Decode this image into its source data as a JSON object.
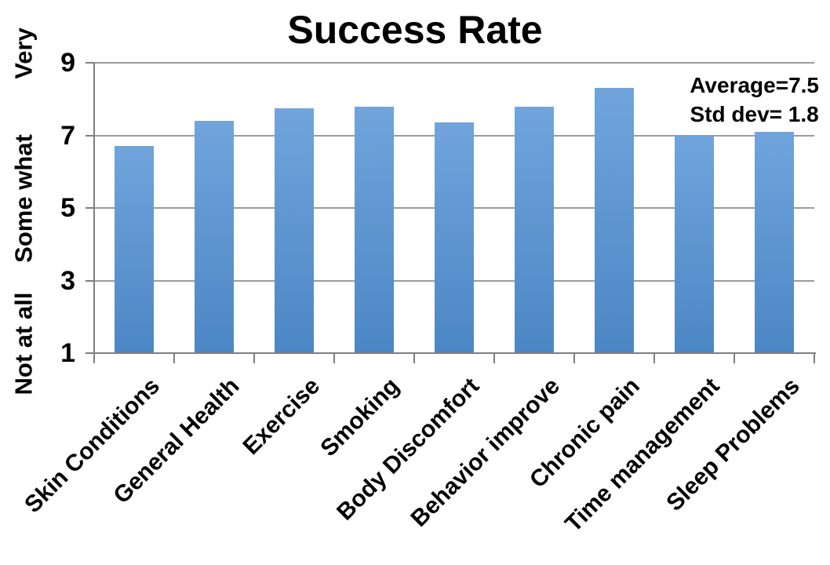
{
  "title": "Success Rate",
  "annotation": {
    "average": "Average=7.5",
    "std_dev": "Std dev= 1.8"
  },
  "y_axis": {
    "ticks": [
      {
        "label": "9",
        "value": 9
      },
      {
        "label": "7",
        "value": 7
      },
      {
        "label": "5",
        "value": 5
      },
      {
        "label": "3",
        "value": 3
      },
      {
        "label": "1",
        "value": 1
      }
    ],
    "scale_words": [
      {
        "label": "Very",
        "value": 9
      },
      {
        "label": "Some what",
        "value": 5
      },
      {
        "label": "Not at all",
        "value": 1
      }
    ]
  },
  "chart_data": {
    "type": "bar",
    "title": "Success Rate",
    "categories": [
      "Skin Conditions",
      "General Health",
      "Exercise",
      "Smoking",
      "Body Discomfort",
      "Behavior improve",
      "Chronic pain",
      "Time management",
      "Sleep Problems"
    ],
    "values": [
      6.7,
      7.4,
      7.75,
      7.8,
      7.35,
      7.8,
      8.3,
      7.0,
      7.1
    ],
    "xlabel": "",
    "ylabel": "",
    "ylim": [
      1,
      9
    ],
    "yticks": [
      1,
      3,
      5,
      7,
      9
    ],
    "ytick_semantic_labels": {
      "1": "Not at all",
      "5": "Some what",
      "9": "Very"
    },
    "grid": true,
    "legend": false,
    "annotations": [
      "Average=7.5",
      "Std dev= 1.8"
    ]
  },
  "colors": {
    "bar_top": "#71A4DB",
    "bar_bottom": "#4B87C5",
    "gridline": "#9C9C9C",
    "axis": "#7F7F7F",
    "text": "#000000",
    "background": "#FFFFFF"
  }
}
